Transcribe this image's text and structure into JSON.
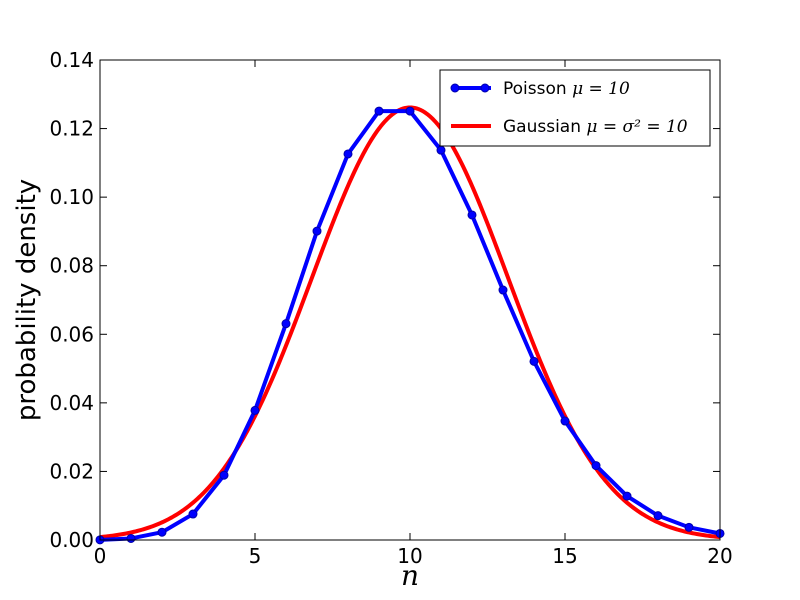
{
  "chart_data": {
    "type": "line",
    "xlabel": "n",
    "ylabel": "probability density",
    "xlim": [
      0,
      20
    ],
    "ylim": [
      0,
      0.14
    ],
    "xticks": [
      "0",
      "5",
      "10",
      "15",
      "20"
    ],
    "yticks": [
      "0.00",
      "0.02",
      "0.04",
      "0.06",
      "0.08",
      "0.10",
      "0.12",
      "0.14"
    ],
    "grid": false,
    "legend_position": "top-right",
    "legend": [
      {
        "text": "Poisson ",
        "math": "μ = 10"
      },
      {
        "text": "Gaussian ",
        "math": "μ = σ² = 10"
      }
    ],
    "series": [
      {
        "name": "Poisson μ=10",
        "color": "#0000ff",
        "style": "line-with-markers",
        "x": [
          0,
          1,
          2,
          3,
          4,
          5,
          6,
          7,
          8,
          9,
          10,
          11,
          12,
          13,
          14,
          15,
          16,
          17,
          18,
          19,
          20
        ],
        "values": [
          4.54e-05,
          0.000454,
          0.00227,
          0.00757,
          0.0189,
          0.0378,
          0.0631,
          0.0901,
          0.1126,
          0.1251,
          0.1251,
          0.1137,
          0.0948,
          0.0729,
          0.0521,
          0.0347,
          0.0217,
          0.0128,
          0.0071,
          0.0037,
          0.0019
        ]
      },
      {
        "name": "Gaussian μ=σ²=10",
        "color": "#ff0000",
        "style": "line",
        "mu": 10,
        "sigma2": 10,
        "x_range": [
          0,
          20
        ]
      }
    ]
  }
}
